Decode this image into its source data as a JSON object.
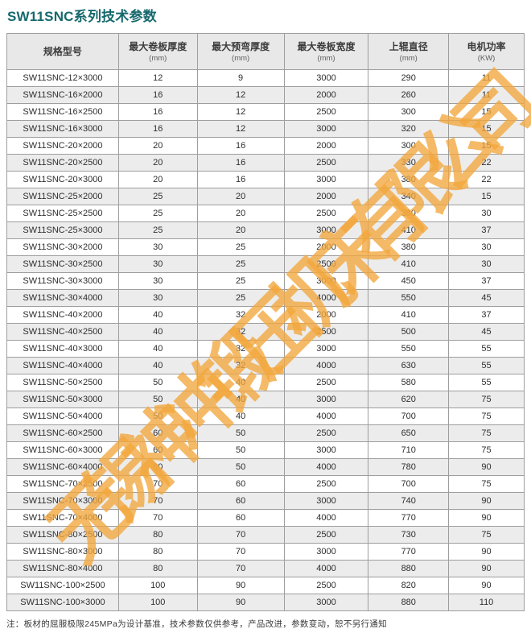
{
  "title": "SW11SNC系列技术参数",
  "table": {
    "columns": [
      {
        "label": "规格型号",
        "unit": ""
      },
      {
        "label": "最大卷板厚度",
        "unit": "(mm)"
      },
      {
        "label": "最大预弯厚度",
        "unit": "(mm)"
      },
      {
        "label": "最大卷板宽度",
        "unit": "(mm)"
      },
      {
        "label": "上辊直径",
        "unit": "(mm)"
      },
      {
        "label": "电机功率",
        "unit": "(KW)"
      }
    ],
    "rows": [
      [
        "SW11SNC-12×3000",
        "12",
        "9",
        "3000",
        "290",
        "11"
      ],
      [
        "SW11SNC-16×2000",
        "16",
        "12",
        "2000",
        "260",
        "11"
      ],
      [
        "SW11SNC-16×2500",
        "16",
        "12",
        "2500",
        "300",
        "15"
      ],
      [
        "SW11SNC-16×3000",
        "16",
        "12",
        "3000",
        "320",
        "15"
      ],
      [
        "SW11SNC-20×2000",
        "20",
        "16",
        "2000",
        "300",
        "15"
      ],
      [
        "SW11SNC-20×2500",
        "20",
        "16",
        "2500",
        "330",
        "22"
      ],
      [
        "SW11SNC-20×3000",
        "20",
        "16",
        "3000",
        "380",
        "22"
      ],
      [
        "SW11SNC-25×2000",
        "25",
        "20",
        "2000",
        "340",
        "15"
      ],
      [
        "SW11SNC-25×2500",
        "25",
        "20",
        "2500",
        "380",
        "30"
      ],
      [
        "SW11SNC-25×3000",
        "25",
        "20",
        "3000",
        "410",
        "37"
      ],
      [
        "SW11SNC-30×2000",
        "30",
        "25",
        "2000",
        "380",
        "30"
      ],
      [
        "SW11SNC-30×2500",
        "30",
        "25",
        "2500",
        "410",
        "30"
      ],
      [
        "SW11SNC-30×3000",
        "30",
        "25",
        "3000",
        "450",
        "37"
      ],
      [
        "SW11SNC-30×4000",
        "30",
        "25",
        "4000",
        "550",
        "45"
      ],
      [
        "SW11SNC-40×2000",
        "40",
        "32",
        "2000",
        "410",
        "37"
      ],
      [
        "SW11SNC-40×2500",
        "40",
        "32",
        "2500",
        "500",
        "45"
      ],
      [
        "SW11SNC-40×3000",
        "40",
        "32",
        "3000",
        "550",
        "55"
      ],
      [
        "SW11SNC-40×4000",
        "40",
        "32",
        "4000",
        "630",
        "55"
      ],
      [
        "SW11SNC-50×2500",
        "50",
        "40",
        "2500",
        "580",
        "55"
      ],
      [
        "SW11SNC-50×3000",
        "50",
        "40",
        "3000",
        "620",
        "75"
      ],
      [
        "SW11SNC-50×4000",
        "50",
        "40",
        "4000",
        "700",
        "75"
      ],
      [
        "SW11SNC-60×2500",
        "60",
        "50",
        "2500",
        "650",
        "75"
      ],
      [
        "SW11SNC-60×3000",
        "60",
        "50",
        "3000",
        "710",
        "75"
      ],
      [
        "SW11SNC-60×4000",
        "60",
        "50",
        "4000",
        "780",
        "90"
      ],
      [
        "SW11SNC-70×2500",
        "70",
        "60",
        "2500",
        "700",
        "75"
      ],
      [
        "SW11SNC-70×3000",
        "70",
        "60",
        "3000",
        "740",
        "90"
      ],
      [
        "SW11SNC-70×4000",
        "70",
        "60",
        "4000",
        "770",
        "90"
      ],
      [
        "SW11SNC-80×2500",
        "80",
        "70",
        "2500",
        "730",
        "75"
      ],
      [
        "SW11SNC-80×3000",
        "80",
        "70",
        "3000",
        "770",
        "90"
      ],
      [
        "SW11SNC-80×4000",
        "80",
        "70",
        "4000",
        "880",
        "90"
      ],
      [
        "SW11SNC-100×2500",
        "100",
        "90",
        "2500",
        "820",
        "90"
      ],
      [
        "SW11SNC-100×3000",
        "100",
        "90",
        "3000",
        "880",
        "110"
      ]
    ]
  },
  "note": "注：板材的屈服极限245MPa为设计基准，技术参数仅供参考，产品改进，参数变动，恕不另行通知",
  "watermark": {
    "text": "无锡神冲锻压机床有限公司",
    "color": "#F2A73C"
  },
  "colors": {
    "title": "#16696d",
    "header_bg": "#e8e8e8",
    "row_stripe": "#ececec",
    "border": "#9e9e9e"
  }
}
